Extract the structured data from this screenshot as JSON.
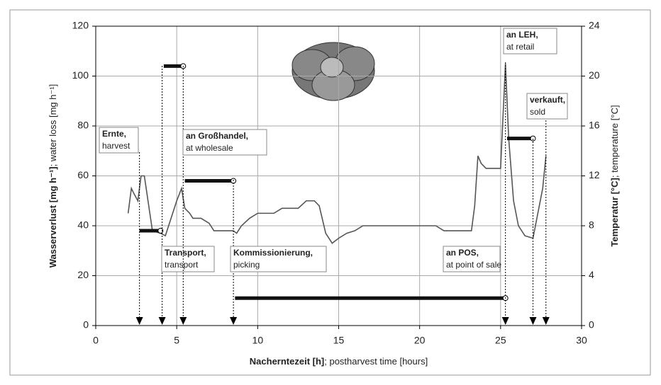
{
  "chart_data": {
    "type": "line",
    "xlabel": "Nacherntezeit [h]",
    "xlabel_en": "; postharvest time [hours]",
    "ylabel": "Wasserverlust [mg h⁻¹]",
    "ylabel_en": "; water loss [mg h⁻¹]",
    "y2label": "Temperatur [°C]",
    "y2label_en": ";  temperature [°C]",
    "xlim": [
      0,
      30
    ],
    "xticks": [
      0,
      5,
      10,
      15,
      20,
      25,
      30
    ],
    "ylim": [
      0,
      120
    ],
    "yticks": [
      0,
      20,
      40,
      60,
      80,
      100,
      120
    ],
    "y2lim": [
      0,
      24
    ],
    "y2ticks": [
      0,
      4,
      8,
      12,
      16,
      20,
      24
    ],
    "grid": true,
    "series": [
      {
        "color": "#555555",
        "x": [
          2,
          2.2,
          2.35,
          2.6,
          2.8,
          3.0,
          3.5,
          4.0,
          4.3,
          4.6,
          5.0,
          5.3,
          5.5,
          5.8,
          6.0,
          6.5,
          7.0,
          7.3,
          8.5,
          8.7,
          9.0,
          9.5,
          10,
          11,
          11.5,
          12.5,
          13,
          13.5,
          13.8,
          14.2,
          14.6,
          15,
          15.5,
          16,
          16.5,
          21,
          21.5,
          23.2,
          23.4,
          23.6,
          23.8,
          24.1,
          25,
          25.3,
          25.5,
          25.8,
          26.1,
          26.5,
          27,
          27.3,
          27.6,
          27.8
        ],
        "values": [
          45,
          55,
          53,
          50,
          60,
          60,
          38,
          37,
          36,
          42,
          50,
          55,
          47,
          45,
          43,
          43,
          41,
          38,
          38,
          37,
          40,
          43,
          45,
          45,
          47,
          47,
          50,
          50,
          48,
          37,
          33,
          35,
          37,
          38,
          40,
          40,
          38,
          38,
          48,
          68,
          65,
          63,
          63,
          105,
          75,
          50,
          40,
          36,
          35,
          45,
          55,
          68
        ]
      },
      {
        "color": "#111111",
        "axis": "y2",
        "x": [
          2.7,
          4.0,
          null,
          4.2,
          5.4,
          null,
          5.5,
          8.5,
          null,
          8.6,
          25.3,
          null,
          25.4,
          27.0
        ],
        "values": [
          7.6,
          7.6,
          null,
          20.8,
          20.8,
          null,
          11.6,
          11.6,
          null,
          2.2,
          2.2,
          null,
          15,
          15
        ]
      }
    ],
    "annotations": [
      {
        "label": "Ernte,",
        "sublabel": "harvest",
        "x": 2.7
      },
      {
        "label": "Transport,",
        "sublabel": "transport",
        "x": 4.1
      },
      {
        "label": "an Großhandel,",
        "sublabel": "at wholesale",
        "x": 5.4
      },
      {
        "label": "Kommissionierung,",
        "sublabel": "picking",
        "x": 8.5
      },
      {
        "label": "an POS,",
        "sublabel": "at point of sale",
        "x": 25.3
      },
      {
        "label": "an LEH,",
        "sublabel": "at retail",
        "x": 27.0
      },
      {
        "label": "verkauft,",
        "sublabel": "sold",
        "x": 27.8
      }
    ]
  }
}
